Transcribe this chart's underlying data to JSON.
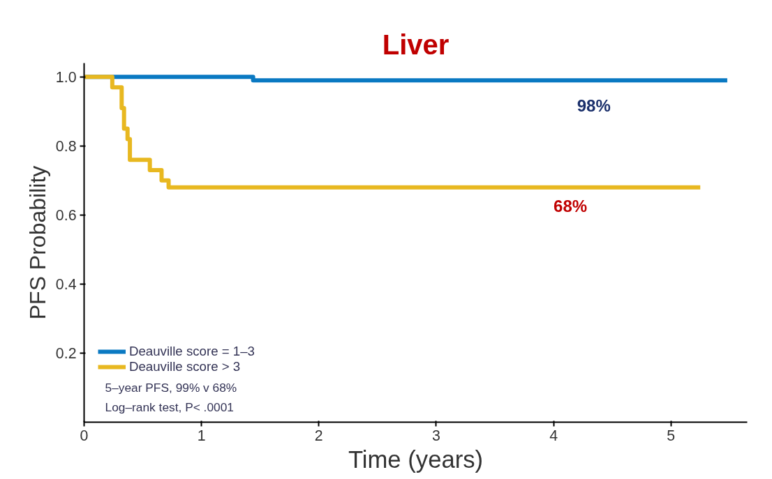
{
  "chart_data": {
    "type": "step",
    "title": "Liver",
    "xlabel": "Time (years)",
    "ylabel": "PFS Probability",
    "series": [
      {
        "name": "Deauville score = 1–3",
        "color": "#0a79c2",
        "x": [
          0,
          1.44,
          5.48
        ],
        "values": [
          1.0,
          0.99,
          0.99
        ]
      },
      {
        "name": "Deauville score > 3",
        "color": "#e8b820",
        "x": [
          0,
          0.24,
          0.32,
          0.34,
          0.37,
          0.39,
          0.56,
          0.66,
          0.72,
          5.25
        ],
        "values": [
          1.0,
          0.97,
          0.91,
          0.85,
          0.82,
          0.76,
          0.73,
          0.7,
          0.68,
          0.68
        ]
      }
    ],
    "xlim": [
      0,
      5.65
    ],
    "ylim": [
      0,
      1.04
    ],
    "xticks": [
      0,
      1,
      2,
      3,
      4,
      5
    ],
    "yticks": [
      {
        "value": 0.2,
        "label": "0.2"
      },
      {
        "value": 0.4,
        "label": "0.4"
      },
      {
        "value": 0.6,
        "label": "0.6"
      },
      {
        "value": 0.8,
        "label": "0.8"
      },
      {
        "value": 1.0,
        "label": "1.0"
      }
    ],
    "annotations": [
      {
        "text": "98%",
        "x": 4.2,
        "y": 0.99
      },
      {
        "text": "68%",
        "x": 4.0,
        "y": 0.68
      },
      "5–year PFS, 99% v  68%",
      "Log–rank test, P<  .0001"
    ],
    "legend": "bottom left",
    "grid": false
  }
}
